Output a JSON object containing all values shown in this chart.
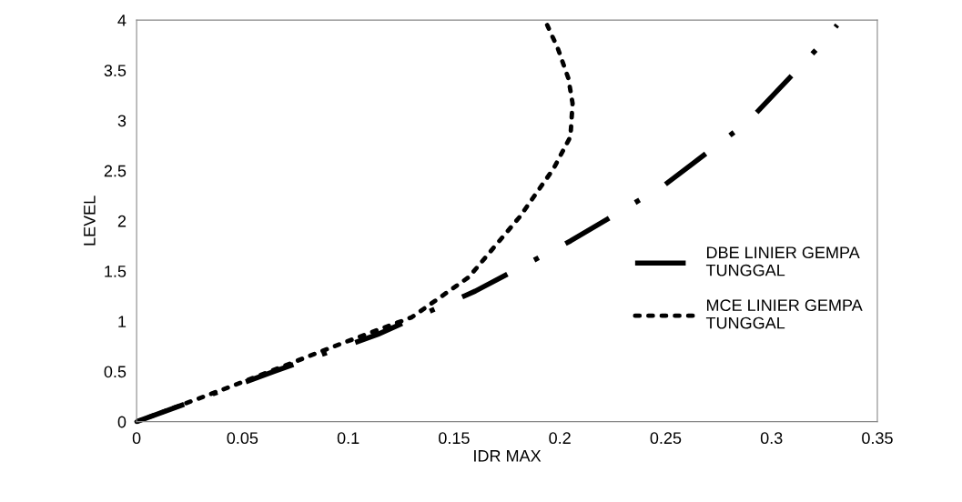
{
  "chart_data": {
    "type": "line",
    "xlabel": "IDR MAX",
    "ylabel": "LEVEL",
    "xlim": [
      0,
      0.35
    ],
    "ylim": [
      0,
      4
    ],
    "xticks": [
      0,
      0.05,
      0.1,
      0.15,
      0.2,
      0.25,
      0.3,
      0.35
    ],
    "yticks": [
      0,
      0.5,
      1,
      1.5,
      2,
      2.5,
      3,
      3.5,
      4
    ],
    "grid": false,
    "legend": "right",
    "marker": "none",
    "series": [
      {
        "name": "DBE LINIER GEMPA TUNGGAL",
        "color": "#000000",
        "line_style": "dashdot",
        "x": [
          0,
          0.065,
          0.114,
          0.16,
          0.205,
          0.249,
          0.289,
          0.324,
          0.331
        ],
        "values": [
          0,
          0.5,
          0.87,
          1.3,
          1.8,
          2.35,
          2.99,
          3.77,
          3.95
        ]
      },
      {
        "name": "MCE LINIER GEMPA TUNGGAL",
        "color": "#000000",
        "line_style": "dotted",
        "x": [
          0,
          0.047,
          0.097,
          0.13,
          0.157,
          0.181,
          0.197,
          0.205,
          0.206,
          0.204,
          0.199,
          0.194
        ],
        "values": [
          0,
          0.37,
          0.78,
          1.04,
          1.44,
          2.04,
          2.52,
          2.84,
          3.17,
          3.42,
          3.72,
          3.95
        ]
      }
    ]
  }
}
